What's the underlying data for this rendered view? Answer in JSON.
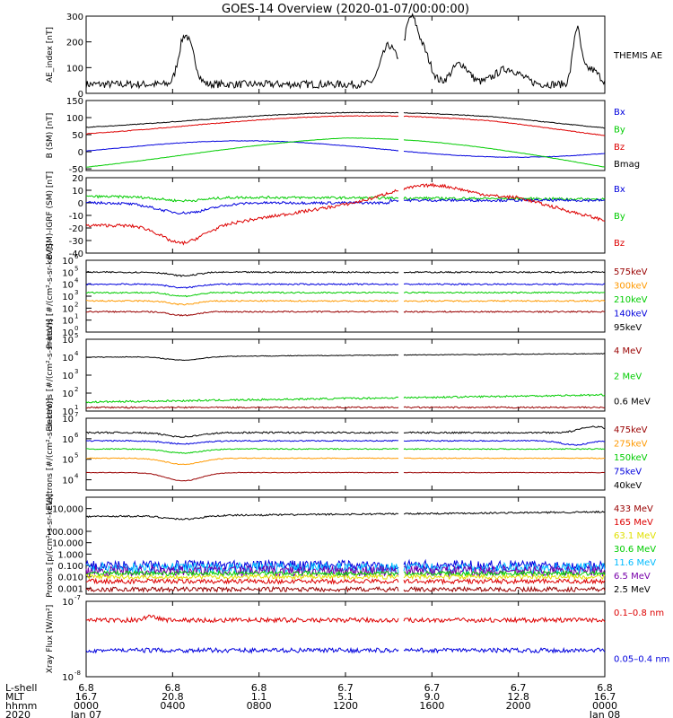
{
  "title": "GOES-14 Overview (2020-01-07/00:00:00)",
  "colors": {
    "black": "#000000",
    "blue": "#0000dd",
    "green": "#00cc00",
    "red": "#dd0000",
    "orange": "#ff9900",
    "darkred": "#990000",
    "cyan": "#00bbff",
    "yellow": "#e0e000",
    "purple": "#7700aa"
  },
  "x_axis": {
    "hours": [
      0,
      4,
      8,
      12,
      16,
      20,
      24
    ],
    "rows": [
      {
        "label": "L-shell",
        "values": [
          "6.8",
          "6.8",
          "6.8",
          "6.7",
          "6.7",
          "6.7",
          "6.8"
        ]
      },
      {
        "label": "MLT",
        "values": [
          "16.7",
          "20.8",
          "1.1",
          "5.1",
          "9.0",
          "12.8",
          "16.7"
        ]
      },
      {
        "label": "hhmm",
        "values": [
          "0000",
          "0400",
          "0800",
          "1200",
          "1600",
          "2000",
          "0000"
        ]
      },
      {
        "label": "2020",
        "values": [
          "Jan 07",
          "",
          "",
          "",
          "",
          "",
          "Jan 08"
        ]
      }
    ]
  },
  "chart_data": [
    {
      "type": "line",
      "ylabel": "AE_index [nT]",
      "ylim": [
        0,
        300
      ],
      "yticks": [
        "0",
        "100",
        "200",
        "300"
      ],
      "legend": [
        {
          "name": "THEMIS AE",
          "color": "#000000"
        }
      ]
    },
    {
      "type": "line",
      "ylabel": "B (SM) [nT]",
      "ylim": [
        -55,
        150
      ],
      "yticks": [
        "-50",
        "0",
        "50",
        "100",
        "150"
      ],
      "legend": [
        {
          "name": "Bx",
          "color": "#0000dd"
        },
        {
          "name": "By",
          "color": "#00cc00"
        },
        {
          "name": "Bz",
          "color": "#dd0000"
        },
        {
          "name": "Bmag",
          "color": "#000000"
        }
      ]
    },
    {
      "type": "line",
      "ylabel": "B (SM)-IGRF (SM) [nT]",
      "ylim": [
        -40,
        20
      ],
      "yticks": [
        "-40",
        "-30",
        "-20",
        "-10",
        "0",
        "10",
        "20"
      ],
      "legend": [
        {
          "name": "Bx",
          "color": "#0000dd"
        },
        {
          "name": "By",
          "color": "#00cc00"
        },
        {
          "name": "Bz",
          "color": "#dd0000"
        }
      ]
    },
    {
      "type": "line",
      "ylabel": "Protons [#/(cm²-s-sr-keV)]",
      "yscale": "log",
      "ylim_exp": [
        0,
        6
      ],
      "legend": [
        {
          "name": "575keV",
          "color": "#990000"
        },
        {
          "name": "300keV",
          "color": "#ff9900"
        },
        {
          "name": "210keV",
          "color": "#00cc00"
        },
        {
          "name": "140keV",
          "color": "#0000dd"
        },
        {
          "name": "95keV",
          "color": "#000000"
        }
      ]
    },
    {
      "type": "line",
      "ylabel": "Electrons [#/(cm²-s-sr-keV)]",
      "yscale": "log",
      "ylim_exp": [
        1,
        5
      ],
      "legend": [
        {
          "name": "4 MeV",
          "color": "#990000"
        },
        {
          "name": "2 MeV",
          "color": "#00cc00"
        },
        {
          "name": "0.6 MeV",
          "color": "#000000"
        }
      ]
    },
    {
      "type": "line",
      "ylabel": "Electrons [#/(cm²-s-sr-keV)]",
      "yscale": "log",
      "ylim_exp": [
        3.5,
        7
      ],
      "legend": [
        {
          "name": "475keV",
          "color": "#990000"
        },
        {
          "name": "275keV",
          "color": "#ff9900"
        },
        {
          "name": "150keV",
          "color": "#00cc00"
        },
        {
          "name": "75keV",
          "color": "#0000dd"
        },
        {
          "name": "40keV",
          "color": "#000000"
        }
      ]
    },
    {
      "type": "line",
      "ylabel": "Protons [p/(cm²-s-sr-keV)]",
      "yscale": "log",
      "ylim": [
        0.0003,
        100000
      ],
      "yticks": [
        "0.001",
        "0.010",
        "0.100",
        "1.000",
        "10.000",
        "100.000",
        "10,000"
      ],
      "legend": [
        {
          "name": "433 MeV",
          "color": "#990000"
        },
        {
          "name": "165 MeV",
          "color": "#dd0000"
        },
        {
          "name": "63.1 MeV",
          "color": "#e0e000"
        },
        {
          "name": "30.6 MeV",
          "color": "#00cc00"
        },
        {
          "name": "11.6 MeV",
          "color": "#00bbff"
        },
        {
          "name": "6.5 MeV",
          "color": "#7700aa"
        },
        {
          "name": "2.5 MeV",
          "color": "#000000"
        }
      ]
    },
    {
      "type": "line",
      "ylabel": "Xray Flux [W/m²]",
      "yscale": "log",
      "ylim_exp": [
        -8,
        -7
      ],
      "legend": [
        {
          "name": "0.1–0.8 nm",
          "color": "#dd0000"
        },
        {
          "name": "0.05–0.4 nm",
          "color": "#0000dd"
        }
      ]
    }
  ]
}
